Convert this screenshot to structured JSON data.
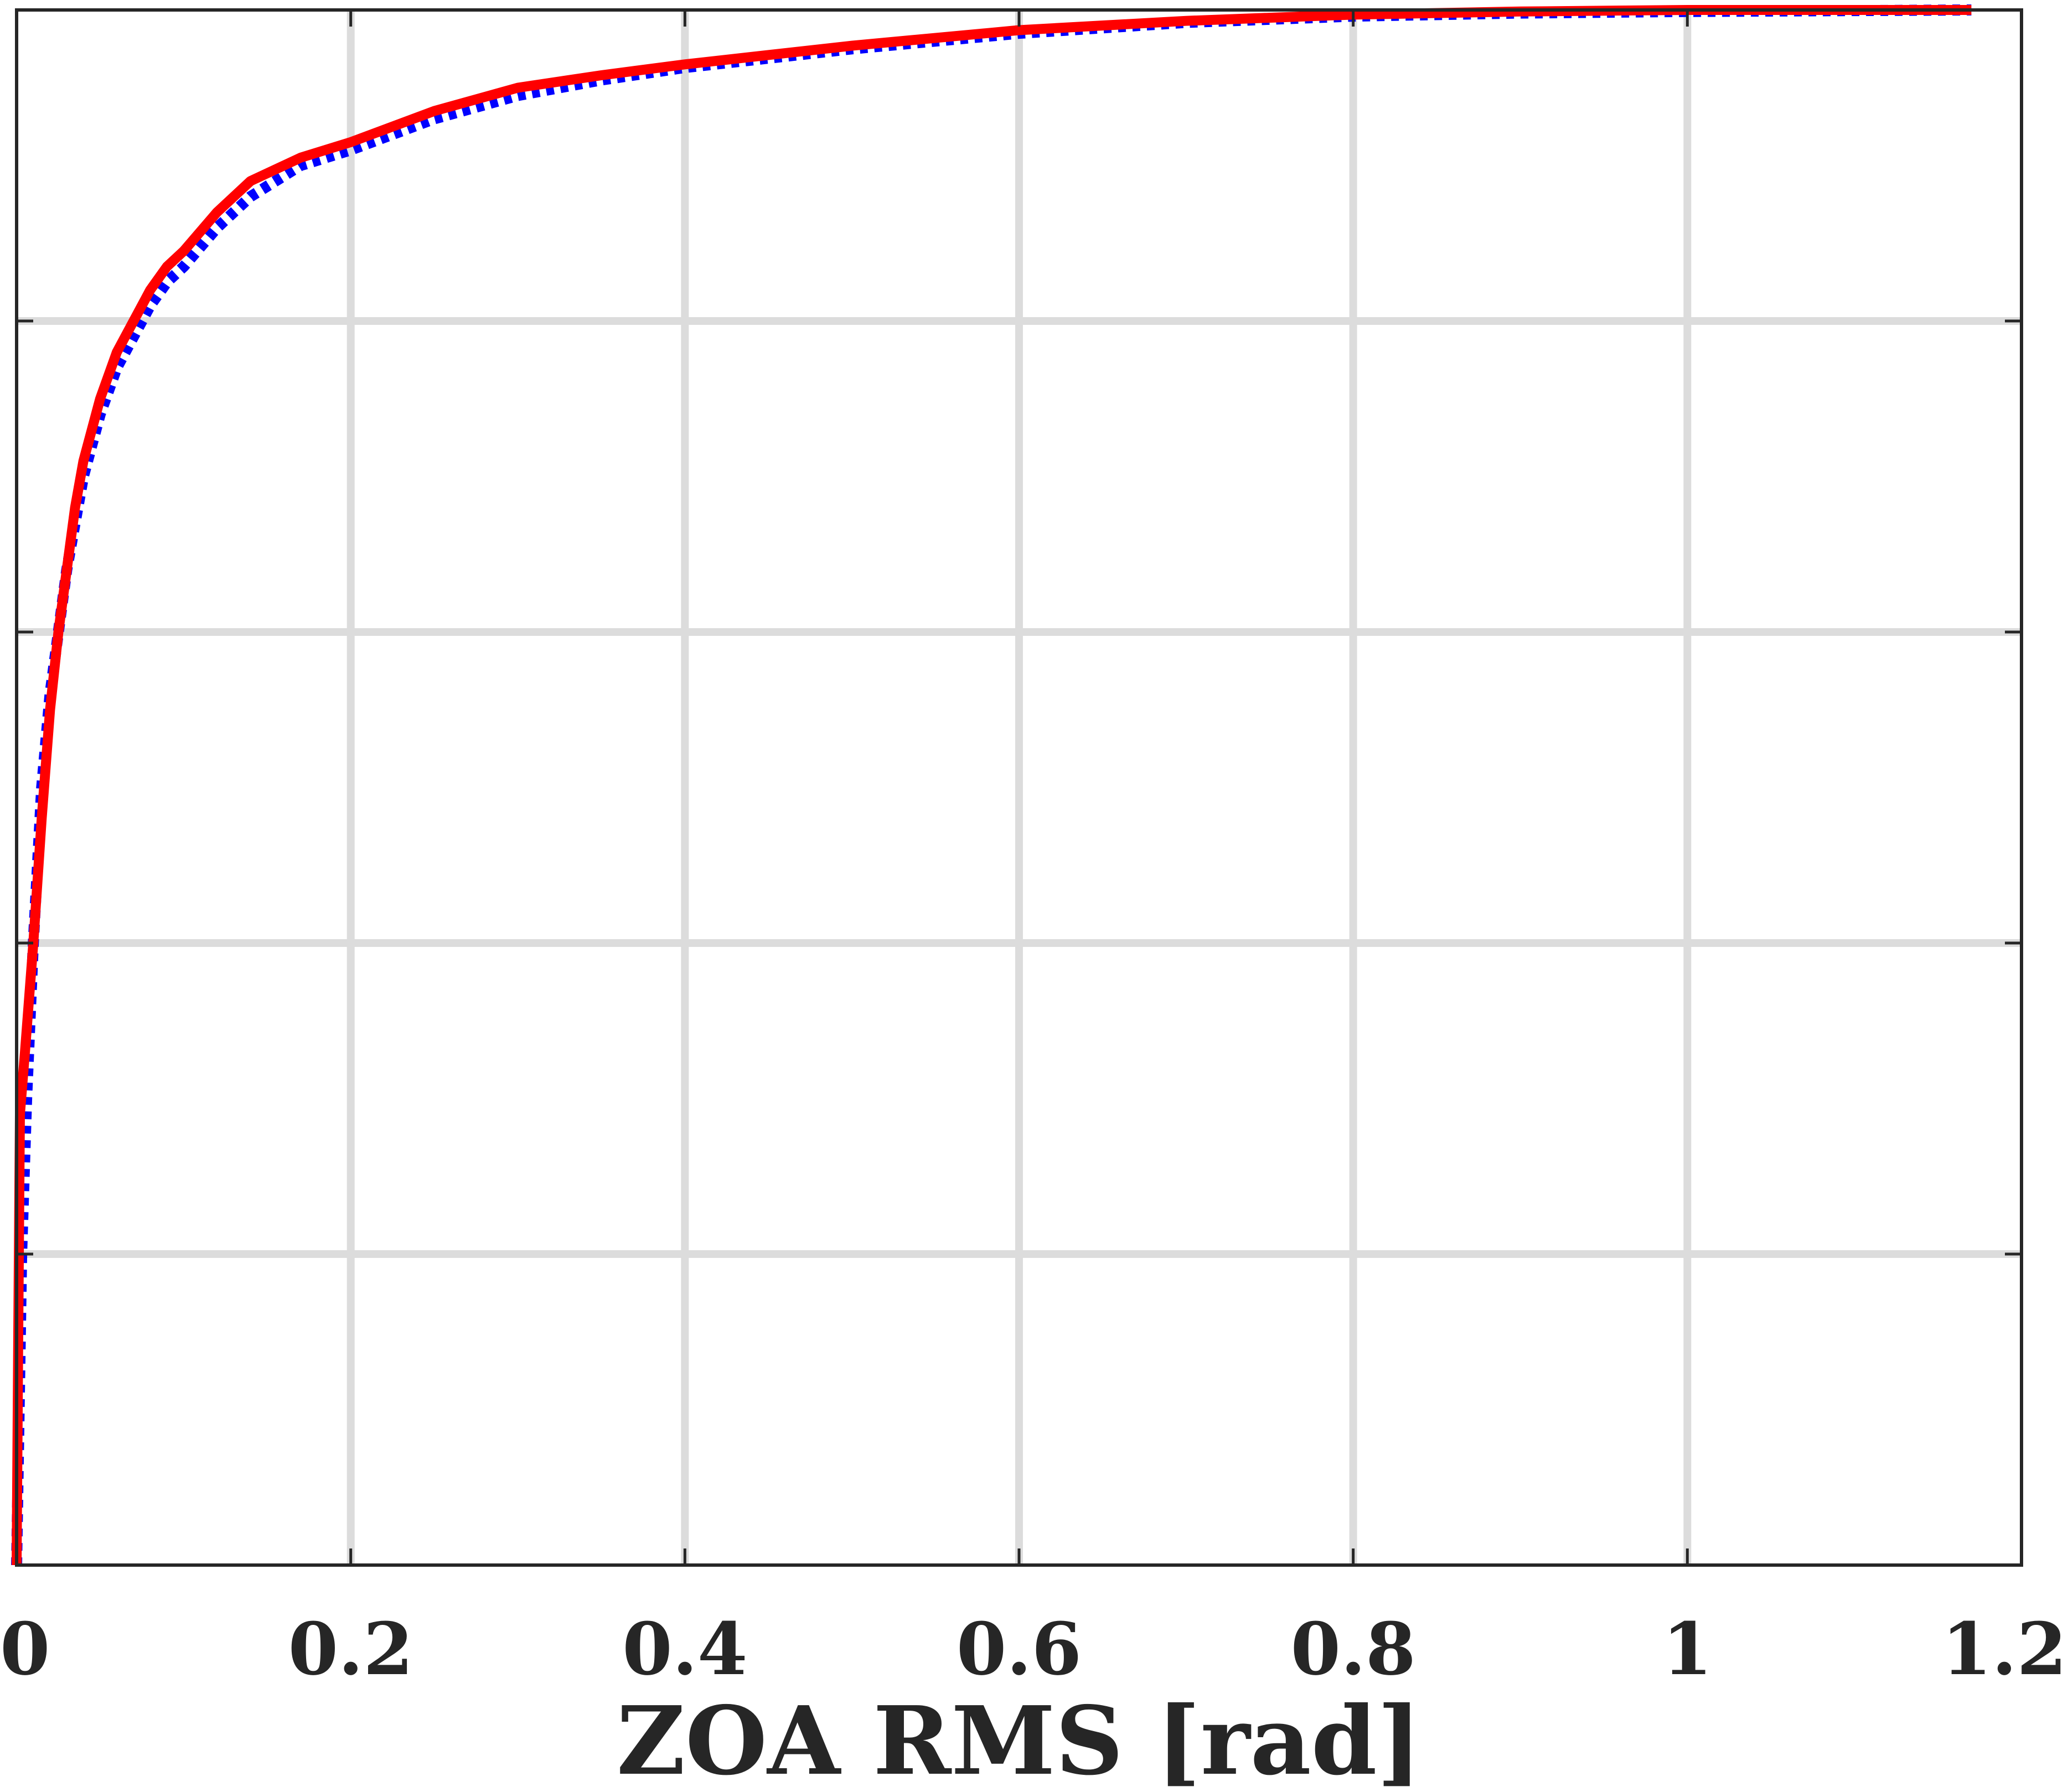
{
  "chart_data": {
    "type": "line",
    "title": "",
    "xlabel": "ZOA RMS [rad]",
    "ylabel": "",
    "xlim": [
      0,
      1.2
    ],
    "ylim": [
      0,
      1
    ],
    "xticks": [
      0,
      0.2,
      0.4,
      0.6,
      0.8,
      1,
      1.2
    ],
    "xtick_labels": [
      "0",
      "0.2",
      "0.4",
      "0.6",
      "0.8",
      "1",
      "1.2"
    ],
    "yticks": [
      0,
      0.2,
      0.4,
      0.6,
      0.8,
      1
    ],
    "ytick_labels": [],
    "grid": true,
    "series": [
      {
        "style": "dotted",
        "color": "#0000ff",
        "x": [
          0,
          0.003,
          0.006,
          0.01,
          0.015,
          0.02,
          0.025,
          0.03,
          0.035,
          0.04,
          0.05,
          0.06,
          0.07,
          0.08,
          0.09,
          0.1,
          0.12,
          0.14,
          0.17,
          0.2,
          0.25,
          0.3,
          0.35,
          0.4,
          0.5,
          0.6,
          0.7,
          0.8,
          0.9,
          1.0,
          1.17
        ],
        "y": [
          0,
          0.2,
          0.3,
          0.4,
          0.5,
          0.56,
          0.6,
          0.64,
          0.67,
          0.7,
          0.74,
          0.77,
          0.79,
          0.81,
          0.825,
          0.835,
          0.86,
          0.88,
          0.9,
          0.91,
          0.93,
          0.945,
          0.955,
          0.963,
          0.975,
          0.985,
          0.992,
          0.996,
          0.998,
          0.999,
          1.0
        ]
      },
      {
        "style": "solid",
        "color": "#ff0000",
        "x": [
          0,
          0.001,
          0.002,
          0.005,
          0.01,
          0.015,
          0.02,
          0.025,
          0.03,
          0.035,
          0.04,
          0.05,
          0.06,
          0.07,
          0.08,
          0.09,
          0.1,
          0.12,
          0.14,
          0.17,
          0.2,
          0.25,
          0.3,
          0.35,
          0.4,
          0.5,
          0.6,
          0.7,
          0.8,
          0.9,
          1.0,
          1.17
        ],
        "y": [
          0,
          0.15,
          0.29,
          0.33,
          0.4,
          0.48,
          0.55,
          0.6,
          0.64,
          0.68,
          0.71,
          0.75,
          0.78,
          0.8,
          0.82,
          0.835,
          0.845,
          0.87,
          0.89,
          0.905,
          0.915,
          0.935,
          0.95,
          0.958,
          0.965,
          0.977,
          0.987,
          0.993,
          0.997,
          0.999,
          1.0,
          1.0
        ]
      }
    ]
  },
  "colors": {
    "axes": "#262626",
    "grid": "#dcdcdc",
    "background": "#ffffff"
  }
}
